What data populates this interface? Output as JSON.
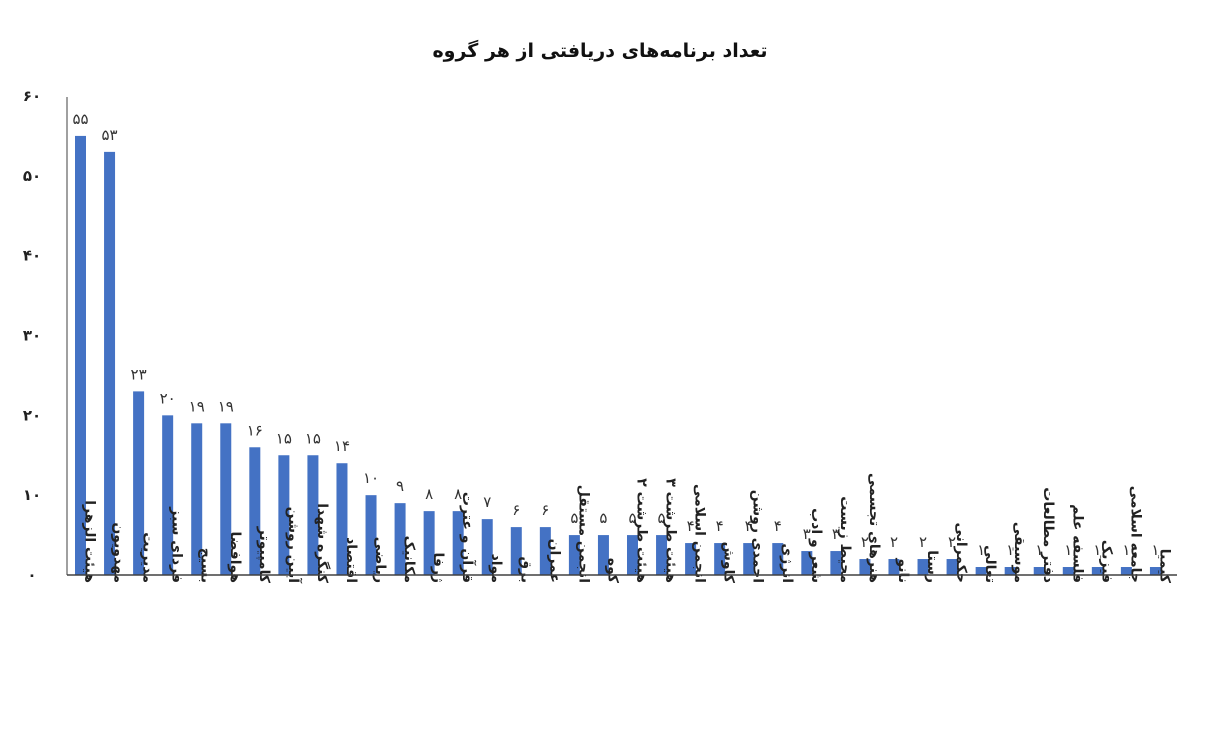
{
  "chart_data": {
    "type": "bar",
    "title": "تعداد برنامه‌های دریافتی از هر گروه",
    "xlabel": "",
    "ylabel": "",
    "ylim": [
      0,
      60
    ],
    "yticks": [
      "۰",
      "۱۰",
      "۲۰",
      "۳۰",
      "۴۰",
      "۵۰",
      "۶۰"
    ],
    "grid": false,
    "legend": "none",
    "bar_color": "#4472C4",
    "categories": [
      "هیئت الزهرا",
      "مهدویون",
      "مدیریت",
      "فردای سبز",
      "بسیج",
      "هوافضا",
      "کامپیوتر",
      "آیین روشن",
      "کنگره شهدا",
      "اقتصاد",
      "ریاضی",
      "مکانیک",
      "ژرفا",
      "قرآن و عترت",
      "مواد",
      "برق",
      "عمران",
      "انجمن مستقل",
      "کوه",
      "هیئت طرشت ۲",
      "هیئت طرشت ۳",
      "انجمن اسلامی",
      "کاوش",
      "احمدی روشن",
      "انرژی",
      "شعر و ادب",
      "محیط زیست",
      "هنرهای تجسمی",
      "نانو",
      "رستا",
      "حکمرانی",
      "تعالی",
      "موسیقی",
      "دفتر مطالعات",
      "فلسفه علم",
      "فیزیک",
      "جامعه اسلامی",
      "کیمیا"
    ],
    "values": [
      55,
      53,
      23,
      20,
      19,
      19,
      16,
      15,
      15,
      14,
      10,
      9,
      8,
      8,
      7,
      6,
      6,
      5,
      5,
      5,
      5,
      4,
      4,
      4,
      4,
      3,
      3,
      2,
      2,
      2,
      2,
      1,
      1,
      1,
      1,
      1,
      1,
      1
    ],
    "data_labels": [
      "۵۵",
      "۵۳",
      "۲۳",
      "۲۰",
      "۱۹",
      "۱۹",
      "۱۶",
      "۱۵",
      "۱۵",
      "۱۴",
      "۱۰",
      "۹",
      "۸",
      "۸",
      "۷",
      "۶",
      "۶",
      "۵",
      "۵",
      "۵",
      "۵",
      "۴",
      "۴",
      "۴",
      "۴",
      "۳",
      "۳",
      "۲",
      "۲",
      "۲",
      "۲",
      "۱",
      "۱",
      "۱",
      "۱",
      "۱",
      "۱",
      "۱"
    ]
  }
}
